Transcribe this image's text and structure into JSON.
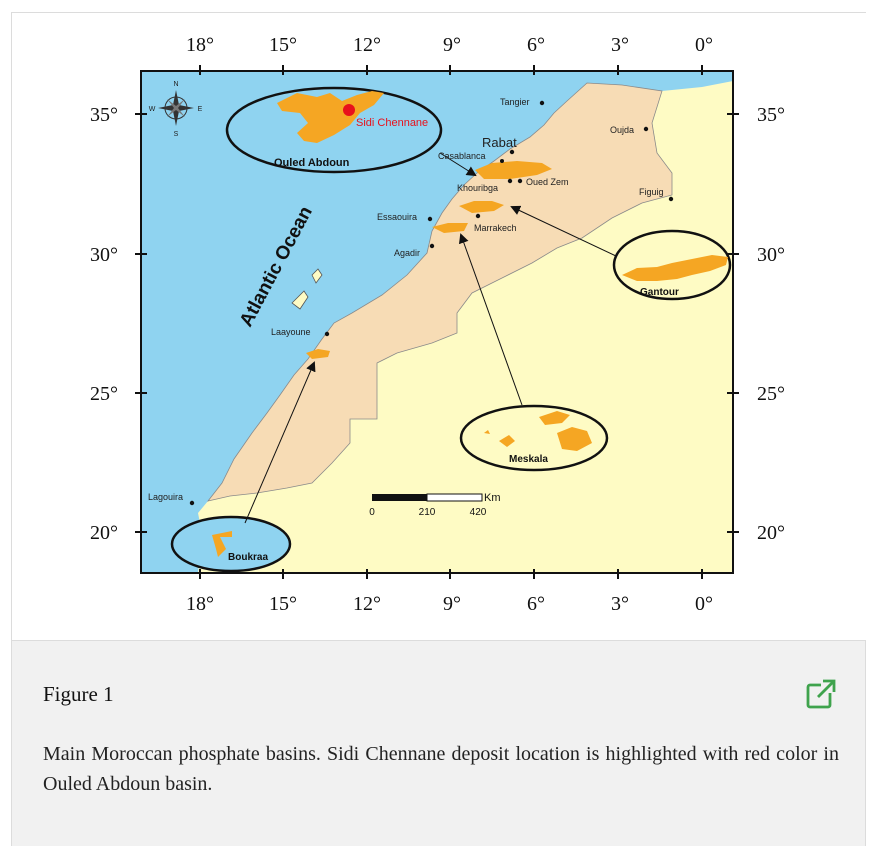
{
  "map": {
    "top_ticks": [
      "18°",
      "15°",
      "12°",
      "9°",
      "6°",
      "3°",
      "0°"
    ],
    "bottom_ticks": [
      "18°",
      "15°",
      "12°",
      "9°",
      "6°",
      "3°",
      "0°"
    ],
    "left_ticks": [
      "35°",
      "30°",
      "25°",
      "20°"
    ],
    "right_ticks": [
      "35°",
      "30°",
      "25°",
      "20°"
    ],
    "ocean_label": "Atlantic Ocean",
    "compass": [
      "N",
      "E",
      "S",
      "W"
    ],
    "places": {
      "tangier": "Tangier",
      "rabat": "Rabat",
      "casablanca": "Casablanca",
      "oujda": "Oujda",
      "khouribga": "Khouribga",
      "oued_zem": "Oued Zem",
      "figuig": "Figuig",
      "essaouira": "Essaouira",
      "marrakech": "Marrakech",
      "agadir": "Agadir",
      "laayoune": "Laayoune",
      "lagouira": "Lagouira"
    },
    "basins": {
      "ouled_abdoun": "Ouled Abdoun",
      "sidi_chennane": "Sidi Chennane",
      "gantour": "Gantour",
      "meskala": "Meskala",
      "boukraa": "Boukraa"
    },
    "scale": {
      "unit": "Km",
      "labels": [
        "0",
        "210",
        "420"
      ]
    },
    "colors": {
      "ocean": "#8fd3f0",
      "morocco": "#f7dcb5",
      "neighbor": "#fefbc4",
      "deposit": "#f5a623",
      "highlight": "#e8101b"
    }
  },
  "caption": {
    "title": "Figure 1",
    "text": "Main Moroccan phosphate basins. Sidi Chennane deposit location is highlighted with red color in Ouled Abdoun basin.",
    "open_icon": "external-link-icon"
  }
}
